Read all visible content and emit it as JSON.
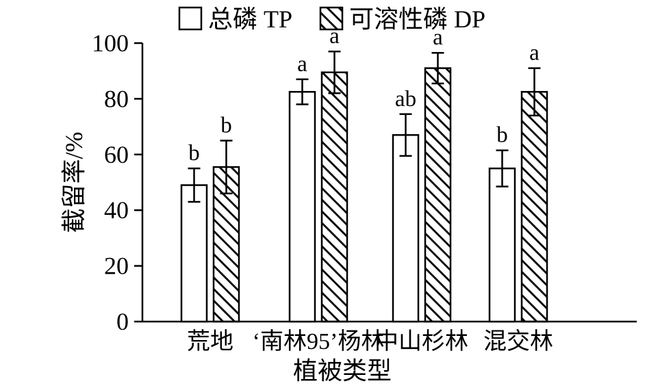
{
  "figure": {
    "background": "#ffffff",
    "ink_color": "#000000"
  },
  "chart_data": {
    "type": "bar",
    "title": "",
    "xlabel": "植被类型",
    "ylabel": "截留率/%",
    "ylim": [
      0,
      100
    ],
    "yticks": [
      0,
      20,
      40,
      60,
      80,
      100
    ],
    "grid": false,
    "legend_position": "top-center",
    "categories": [
      "荒地",
      "‘南林95’杨林",
      "中山杉林",
      "混交林"
    ],
    "series": [
      {
        "name": "总磷 TP",
        "hatch": false,
        "values": [
          49,
          82.5,
          67,
          55
        ],
        "errors": [
          6,
          4.5,
          7.5,
          6.5
        ],
        "letters": [
          "b",
          "a",
          "ab",
          "b"
        ]
      },
      {
        "name": "可溶性磷 DP",
        "hatch": true,
        "values": [
          55.5,
          89.5,
          91,
          82.5
        ],
        "errors": [
          9.5,
          7.5,
          5.5,
          8.5
        ],
        "letters": [
          "b",
          "a",
          "a",
          "a"
        ]
      }
    ]
  }
}
